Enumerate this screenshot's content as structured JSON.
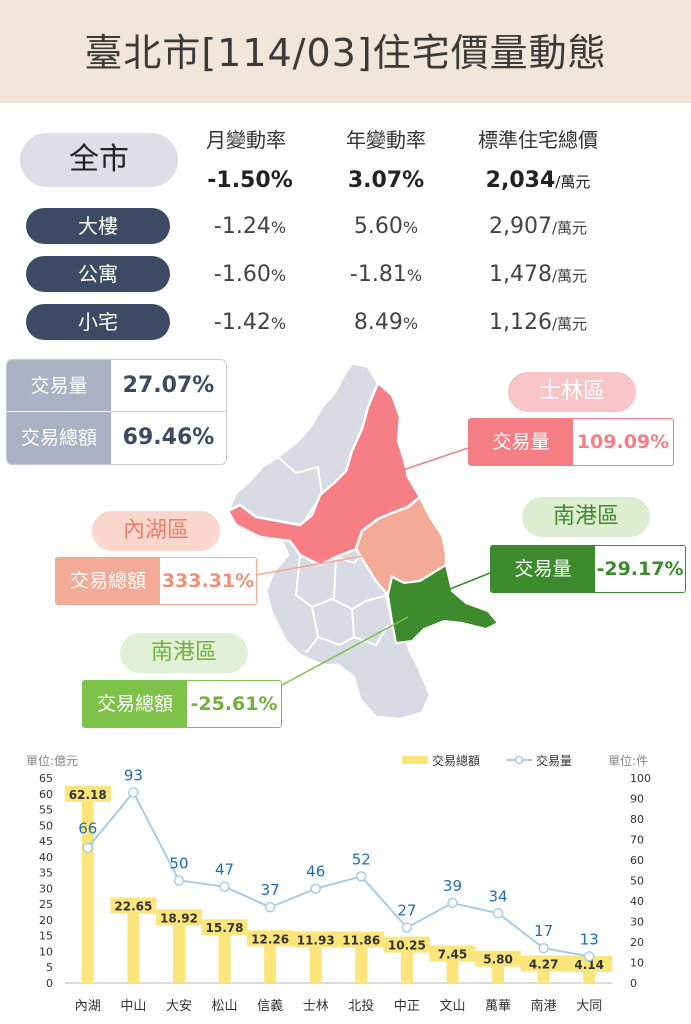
{
  "title": "臺北市[114/03]住宅價量動態",
  "summary": {
    "headers": [
      "月變動率",
      "年變動率",
      "標準住宅總價"
    ],
    "rows": [
      {
        "name": "全市",
        "monthly": "-1.50",
        "yearly": "3.07",
        "price": "2,034"
      },
      {
        "name": "大樓",
        "monthly": "-1.24",
        "yearly": "5.60",
        "price": "2,907"
      },
      {
        "name": "公寓",
        "monthly": "-1.60",
        "yearly": "-1.81",
        "price": "1,478"
      },
      {
        "name": "小宅",
        "monthly": "-1.42",
        "yearly": "8.49",
        "price": "1,126"
      }
    ],
    "pct": "%",
    "unit": "/萬元"
  },
  "city_stats": [
    {
      "label": "交易量",
      "value": "27.07%"
    },
    {
      "label": "交易總額",
      "value": "69.46%"
    }
  ],
  "map_callouts": [
    {
      "district": "士林區",
      "label": "交易量",
      "value": "109.09%"
    },
    {
      "district": "內湖區",
      "label": "交易總額",
      "value": "333.31%"
    },
    {
      "district": "南港區",
      "label": "交易量",
      "value": "-29.17%"
    },
    {
      "district": "南港區",
      "label": "交易總額",
      "value": "-25.61%"
    }
  ],
  "colors": {
    "shilin": "#f57f85",
    "neihu": "#f3aa96",
    "nangang_volume": "#3e8b2e",
    "nangang_amount": "#7fc24a",
    "map_base": "#d8dbe3",
    "bar": "#fce57a",
    "line": "#a9cde8",
    "line_label": "#1f6fb5",
    "pill_dark": "#3c4b63"
  },
  "chart_data": {
    "type": "bar",
    "categories": [
      "內湖",
      "中山",
      "大安",
      "松山",
      "信義",
      "士林",
      "北投",
      "中正",
      "文山",
      "萬華",
      "南港",
      "大同"
    ],
    "series": [
      {
        "name": "交易總額",
        "type": "bar",
        "axis": "left",
        "values": [
          62.18,
          22.65,
          18.92,
          15.78,
          12.26,
          11.93,
          11.86,
          10.25,
          7.45,
          5.8,
          4.27,
          4.14
        ]
      },
      {
        "name": "交易量",
        "type": "line",
        "axis": "right",
        "values": [
          66,
          93,
          50,
          47,
          37,
          46,
          52,
          27,
          39,
          34,
          17,
          13
        ]
      }
    ],
    "left_axis": {
      "label": "單位:億元",
      "min": 0,
      "max": 65,
      "ticks": [
        0,
        5,
        10,
        15,
        20,
        25,
        30,
        35,
        40,
        45,
        50,
        55,
        60,
        65
      ]
    },
    "right_axis": {
      "label": "單位:件",
      "min": 0,
      "max": 100,
      "ticks": [
        0,
        10,
        20,
        30,
        40,
        50,
        60,
        70,
        80,
        90,
        100
      ]
    },
    "legend_position": "top-right",
    "grid": false
  }
}
